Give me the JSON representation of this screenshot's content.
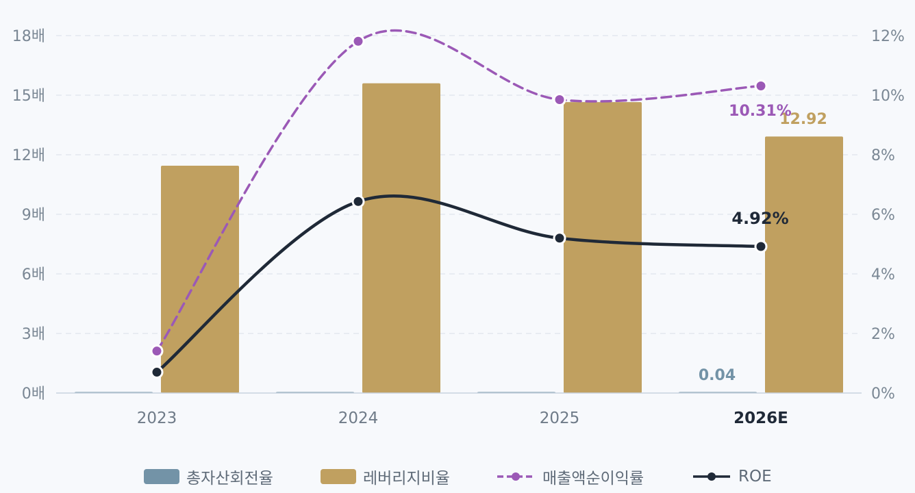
{
  "chart_data": {
    "type": "bar",
    "categories": [
      "2023",
      "2024",
      "2025",
      "2026E"
    ],
    "y_left": {
      "ticks": [
        "0배",
        "3배",
        "6배",
        "9배",
        "12배",
        "15배",
        "18배"
      ],
      "range": [
        0,
        18
      ]
    },
    "y_right": {
      "ticks": [
        "0%",
        "2%",
        "4%",
        "6%",
        "8%",
        "10%",
        "12%"
      ],
      "range": [
        0,
        12
      ]
    },
    "series": [
      {
        "name": "총자산회전율",
        "type": "bar",
        "axis": "left",
        "color": "#7393a7",
        "values": [
          0.04,
          0.04,
          0.04,
          0.04
        ]
      },
      {
        "name": "레버리지비율",
        "type": "bar",
        "axis": "left",
        "color": "#c0a060",
        "values": [
          11.45,
          15.6,
          14.65,
          12.92
        ]
      },
      {
        "name": "매출액순이익률",
        "type": "line",
        "axis": "right",
        "color": "#9b59b6",
        "dashed": true,
        "values": [
          1.41,
          11.81,
          9.85,
          10.31
        ]
      },
      {
        "name": "ROE",
        "type": "line",
        "axis": "right",
        "color": "#1f2937",
        "dashed": false,
        "values": [
          0.7,
          6.43,
          5.2,
          4.92
        ]
      }
    ],
    "data_labels": {
      "turnover_last": "0.04",
      "leverage_last": "12.92",
      "margin_last": "10.31%",
      "roe_last": "4.92%"
    },
    "grid": true,
    "legend_position": "bottom"
  }
}
